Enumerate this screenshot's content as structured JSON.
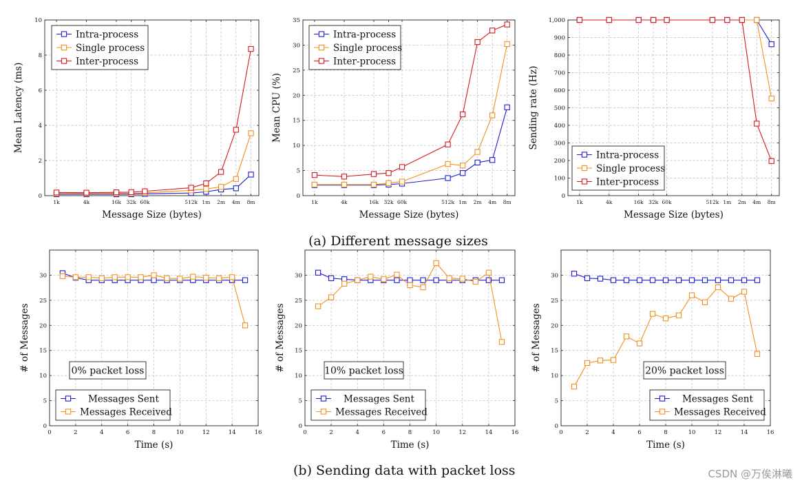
{
  "captions": {
    "a": "(a) Different message sizes",
    "b": "(b) Sending data with packet loss"
  },
  "watermark": "CSDN @万俟淋曦",
  "colors": {
    "intra": "#1a1ad6",
    "single": "#f29019",
    "inter": "#d6171c",
    "sent": "#1a1ad6",
    "received": "#f29019",
    "grid": "#b8b8b8"
  },
  "chart_data": [
    {
      "type": "line",
      "title": "",
      "xlabel": "Message Size (bytes)",
      "ylabel": "Mean Latency (ms)",
      "ylim": [
        0,
        10
      ],
      "yticks": [
        0,
        2,
        4,
        6,
        8,
        10
      ],
      "categories": [
        "1k",
        "4k",
        "16k",
        "32k",
        "60k",
        "512k",
        "1m",
        "2m",
        "4m",
        "8m"
      ],
      "legend_position": "top-left",
      "series": [
        {
          "name": "Intra-process",
          "color_key": "intra",
          "values": [
            0.08,
            0.08,
            0.08,
            0.08,
            0.1,
            0.15,
            0.22,
            0.35,
            0.42,
            1.2
          ]
        },
        {
          "name": "Single process",
          "color_key": "single",
          "values": [
            0.12,
            0.12,
            0.13,
            0.13,
            0.16,
            0.3,
            0.38,
            0.5,
            0.95,
            3.55
          ]
        },
        {
          "name": "Inter-process",
          "color_key": "inter",
          "values": [
            0.18,
            0.17,
            0.19,
            0.2,
            0.25,
            0.45,
            0.7,
            1.35,
            3.75,
            8.35
          ]
        }
      ]
    },
    {
      "type": "line",
      "title": "",
      "xlabel": "Message Size (bytes)",
      "ylabel": "Mean CPU (%)",
      "ylim": [
        0,
        35
      ],
      "yticks": [
        0,
        5,
        10,
        15,
        20,
        25,
        30,
        35
      ],
      "categories": [
        "1k",
        "4k",
        "16k",
        "32k",
        "60k",
        "512k",
        "1m",
        "2m",
        "4m",
        "8m"
      ],
      "legend_position": "top-left",
      "series": [
        {
          "name": "Intra-process",
          "color_key": "intra",
          "values": [
            2.1,
            2.1,
            2.1,
            2.2,
            2.4,
            3.5,
            4.5,
            6.6,
            7.1,
            17.6
          ]
        },
        {
          "name": "Single process",
          "color_key": "single",
          "values": [
            2.2,
            2.2,
            2.2,
            2.5,
            2.8,
            6.3,
            6.0,
            8.7,
            16.0,
            30.2
          ]
        },
        {
          "name": "Inter-process",
          "color_key": "inter",
          "values": [
            4.1,
            3.8,
            4.3,
            4.5,
            5.7,
            10.2,
            16.2,
            30.6,
            32.9,
            34.1
          ]
        }
      ]
    },
    {
      "type": "line",
      "title": "",
      "xlabel": "Message Size (bytes)",
      "ylabel": "Sending rate (Hz)",
      "ylim": [
        0,
        1000
      ],
      "yticks": [
        0,
        100,
        200,
        300,
        400,
        500,
        600,
        700,
        800,
        900,
        1000
      ],
      "ytick_labels": [
        "0",
        "100",
        "200",
        "300",
        "400",
        "500",
        "600",
        "700",
        "800",
        "900",
        "1,000"
      ],
      "categories": [
        "1k",
        "4k",
        "16k",
        "32k",
        "60k",
        "512k",
        "1m",
        "2m",
        "4m",
        "8m"
      ],
      "legend_position": "bottom-left",
      "series": [
        {
          "name": "Intra-process",
          "color_key": "intra",
          "values": [
            1000,
            1000,
            1000,
            1000,
            1000,
            1000,
            1000,
            1000,
            1000,
            862
          ]
        },
        {
          "name": "Single process",
          "color_key": "single",
          "values": [
            1000,
            1000,
            1000,
            1000,
            1000,
            1000,
            1000,
            1000,
            1000,
            553
          ]
        },
        {
          "name": "Inter-process",
          "color_key": "inter",
          "values": [
            1000,
            1000,
            1000,
            1000,
            1000,
            1000,
            1000,
            1000,
            410,
            197
          ]
        }
      ]
    },
    {
      "type": "line",
      "title": "",
      "annotation": "0% packet loss",
      "xlabel": "Time (s)",
      "ylabel": "# of Messages",
      "xlim": [
        0,
        16
      ],
      "xticks": [
        0,
        2,
        4,
        6,
        8,
        10,
        12,
        14,
        16
      ],
      "ylim": [
        0,
        35
      ],
      "yticks": [
        0,
        5,
        10,
        15,
        20,
        25,
        30
      ],
      "legend_position": "bottom-left",
      "x": [
        1,
        2,
        3,
        4,
        5,
        6,
        7,
        8,
        9,
        10,
        11,
        12,
        13,
        14,
        15
      ],
      "series": [
        {
          "name": "Messages Sent",
          "color_key": "sent",
          "values": [
            30.4,
            29.5,
            29,
            29,
            29,
            29,
            29,
            29,
            29,
            29,
            29,
            29,
            29,
            29,
            29
          ]
        },
        {
          "name": "Messages Received",
          "color_key": "received",
          "values": [
            29.8,
            29.6,
            29.6,
            29.4,
            29.6,
            29.6,
            29.6,
            30,
            29.4,
            29.3,
            29.7,
            29.5,
            29.4,
            29.6,
            20
          ]
        }
      ]
    },
    {
      "type": "line",
      "title": "",
      "annotation": "10% packet loss",
      "xlabel": "Time (s)",
      "ylabel": "# of Messages",
      "xlim": [
        0,
        16
      ],
      "xticks": [
        0,
        2,
        4,
        6,
        8,
        10,
        12,
        14,
        16
      ],
      "ylim": [
        0,
        35
      ],
      "yticks": [
        0,
        5,
        10,
        15,
        20,
        25,
        30
      ],
      "legend_position": "bottom-left",
      "x": [
        1,
        2,
        3,
        4,
        5,
        6,
        7,
        8,
        9,
        10,
        11,
        12,
        13,
        14,
        15
      ],
      "series": [
        {
          "name": "Messages Sent",
          "color_key": "sent",
          "values": [
            30.5,
            29.4,
            29.2,
            29,
            29,
            29,
            29,
            29,
            29,
            29,
            29,
            29,
            29,
            29,
            29
          ]
        },
        {
          "name": "Messages Received",
          "color_key": "received",
          "values": [
            23.8,
            25.6,
            28.3,
            29,
            29.7,
            29.2,
            30.1,
            28,
            27.6,
            32.4,
            29.4,
            29.3,
            28.7,
            30.5,
            16.7
          ]
        }
      ]
    },
    {
      "type": "line",
      "title": "",
      "annotation": "20% packet loss",
      "xlabel": "Time (s)",
      "ylabel": "# of Messages",
      "xlim": [
        0,
        16
      ],
      "xticks": [
        0,
        2,
        4,
        6,
        8,
        10,
        12,
        14,
        16
      ],
      "ylim": [
        0,
        35
      ],
      "yticks": [
        0,
        5,
        10,
        15,
        20,
        25,
        30
      ],
      "legend_position": "bottom-right",
      "x": [
        1,
        2,
        3,
        4,
        5,
        6,
        7,
        8,
        9,
        10,
        11,
        12,
        13,
        14,
        15
      ],
      "series": [
        {
          "name": "Messages Sent",
          "color_key": "sent",
          "values": [
            30.3,
            29.4,
            29.3,
            29,
            29,
            29,
            29,
            29,
            29,
            29,
            29,
            29,
            29,
            29,
            29
          ]
        },
        {
          "name": "Messages Received",
          "color_key": "received",
          "values": [
            7.8,
            12.5,
            13,
            13.1,
            17.8,
            16.4,
            22.3,
            21.4,
            22,
            26,
            24.6,
            27.6,
            25.3,
            26.7,
            14.3
          ]
        }
      ]
    }
  ]
}
